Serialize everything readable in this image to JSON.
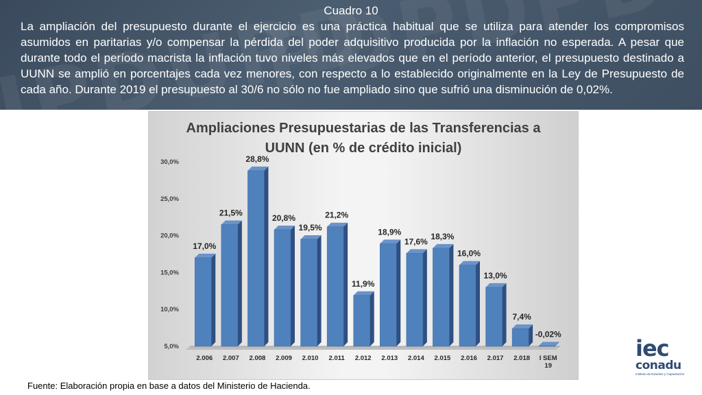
{
  "header": {
    "title": "Cuadro 10",
    "text": "La ampliación del presupuesto durante el ejercicio es una práctica habitual que se utiliza para atender los compromisos asumidos en paritarias y/o compensar la pérdida del poder adquisitivo producida por la inflación no esperada. A pesar que durante todo el período macrista la inflación tuvo niveles más elevados que en el período anterior, el presupuesto destinado a UUNN se amplió en porcentajes cada vez menores, con respecto a lo establecido originalmente en la Ley de Presupuesto de cada año. Durante 2019 el presupuesto al 30/6 no sólo no fue ampliado sino que sufrió una disminución de 0,02%."
  },
  "chart_data": {
    "type": "bar",
    "title": "Ampliaciones Presupuestarias de las Transferencias a UUNN (en % de crédito inicial)",
    "categories": [
      "2.006",
      "2.007",
      "2.008",
      "2.009",
      "2.010",
      "2.011",
      "2.012",
      "2.013",
      "2.014",
      "2.015",
      "2.016",
      "2.017",
      "2.018",
      "I SEM 19"
    ],
    "values": [
      17.0,
      21.5,
      28.8,
      20.8,
      19.5,
      21.2,
      11.9,
      18.9,
      17.6,
      18.3,
      16.0,
      13.0,
      7.4,
      -0.02
    ],
    "data_labels": [
      "17,0%",
      "21,5%",
      "28,8%",
      "20,8%",
      "19,5%",
      "21,2%",
      "11,9%",
      "18,9%",
      "17,6%",
      "18,3%",
      "16,0%",
      "13,0%",
      "7,4%",
      "-0,02%"
    ],
    "ylim": [
      5.0,
      30.0
    ],
    "yticks": [
      5.0,
      10.0,
      15.0,
      20.0,
      25.0,
      30.0
    ],
    "ytick_labels": [
      "5,0%",
      "10,0%",
      "15,0%",
      "20,0%",
      "25,0%",
      "30,0%"
    ],
    "bar_color": "#4f81bd",
    "bar_side_color": "#2f4f80",
    "bar_top_color": "#6a93c8"
  },
  "footer": "Fuente: Elaboración propia en base a datos del Ministerio de Hacienda.",
  "logo": {
    "line1": "iec",
    "line2": "conadu",
    "line3": "Instituto de Estudios y Capacitación"
  }
}
